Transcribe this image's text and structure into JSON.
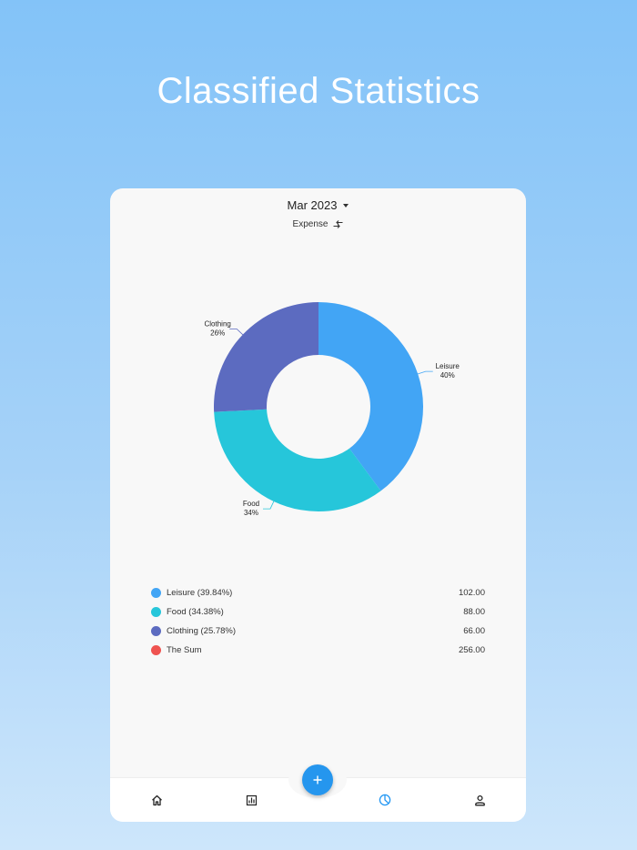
{
  "headline": "Classified Statistics",
  "filters": {
    "month": "Mar 2023",
    "type": "Expense"
  },
  "chart_data": {
    "type": "pie",
    "style": "donut",
    "slices": [
      {
        "name": "Leisure",
        "value": 102.0,
        "percent_label": "40%",
        "color": "#42a5f5"
      },
      {
        "name": "Food",
        "value": 88.0,
        "percent_label": "34%",
        "color": "#26c6da"
      },
      {
        "name": "Clothing",
        "value": 66.0,
        "percent_label": "26%",
        "color": "#5c6bc0"
      }
    ]
  },
  "legend": {
    "items": [
      {
        "label": "Leisure (39.84%)",
        "value": "102.00",
        "color": "#42a5f5"
      },
      {
        "label": "Food (34.38%)",
        "value": "88.00",
        "color": "#26c6da"
      },
      {
        "label": "Clothing (25.78%)",
        "value": "66.00",
        "color": "#5c6bc0"
      },
      {
        "label": "The Sum",
        "value": "256.00",
        "color": "#ef5350"
      }
    ]
  },
  "nav": {
    "items": [
      {
        "icon": "home-icon",
        "active": false
      },
      {
        "icon": "bar-chart-icon",
        "active": false
      },
      {
        "icon": "pie-chart-icon",
        "active": true
      },
      {
        "icon": "person-icon",
        "active": false
      }
    ],
    "fab_icon": "plus-icon",
    "active_color": "#2196f3",
    "inactive_color": "#222222"
  }
}
